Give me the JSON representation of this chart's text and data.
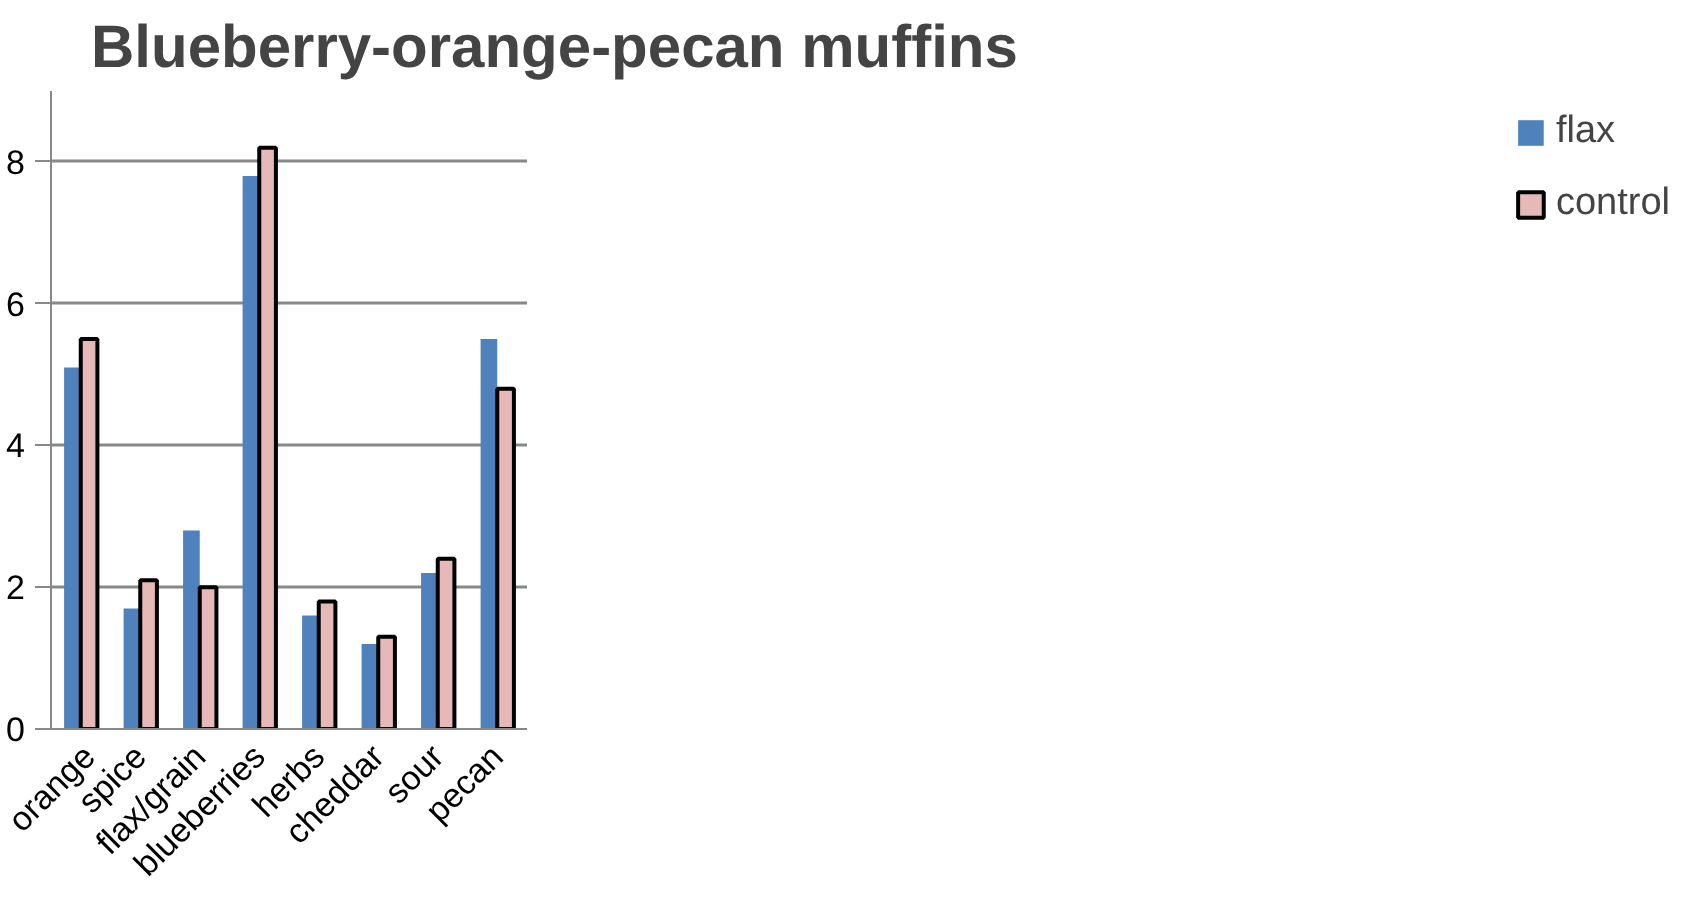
{
  "chart_data": {
    "type": "bar",
    "title": "Blueberry-orange-pecan muffins",
    "categories": [
      "orange",
      "spice",
      "flax/grain",
      "blueberries",
      "herbs",
      "cheddar",
      "sour",
      "pecan"
    ],
    "series": [
      {
        "name": "flax",
        "color": "#4f81bd",
        "values": [
          5.1,
          1.7,
          2.8,
          7.8,
          1.6,
          1.2,
          2.2,
          5.5
        ]
      },
      {
        "name": "control",
        "color": "#e6b9b8",
        "values": [
          5.5,
          2.1,
          2.0,
          8.2,
          1.8,
          1.3,
          2.4,
          4.8
        ]
      }
    ],
    "ylim": [
      0,
      9
    ],
    "yticks": [
      0,
      2,
      4,
      6,
      8
    ],
    "grid": "y",
    "legend": "right"
  }
}
